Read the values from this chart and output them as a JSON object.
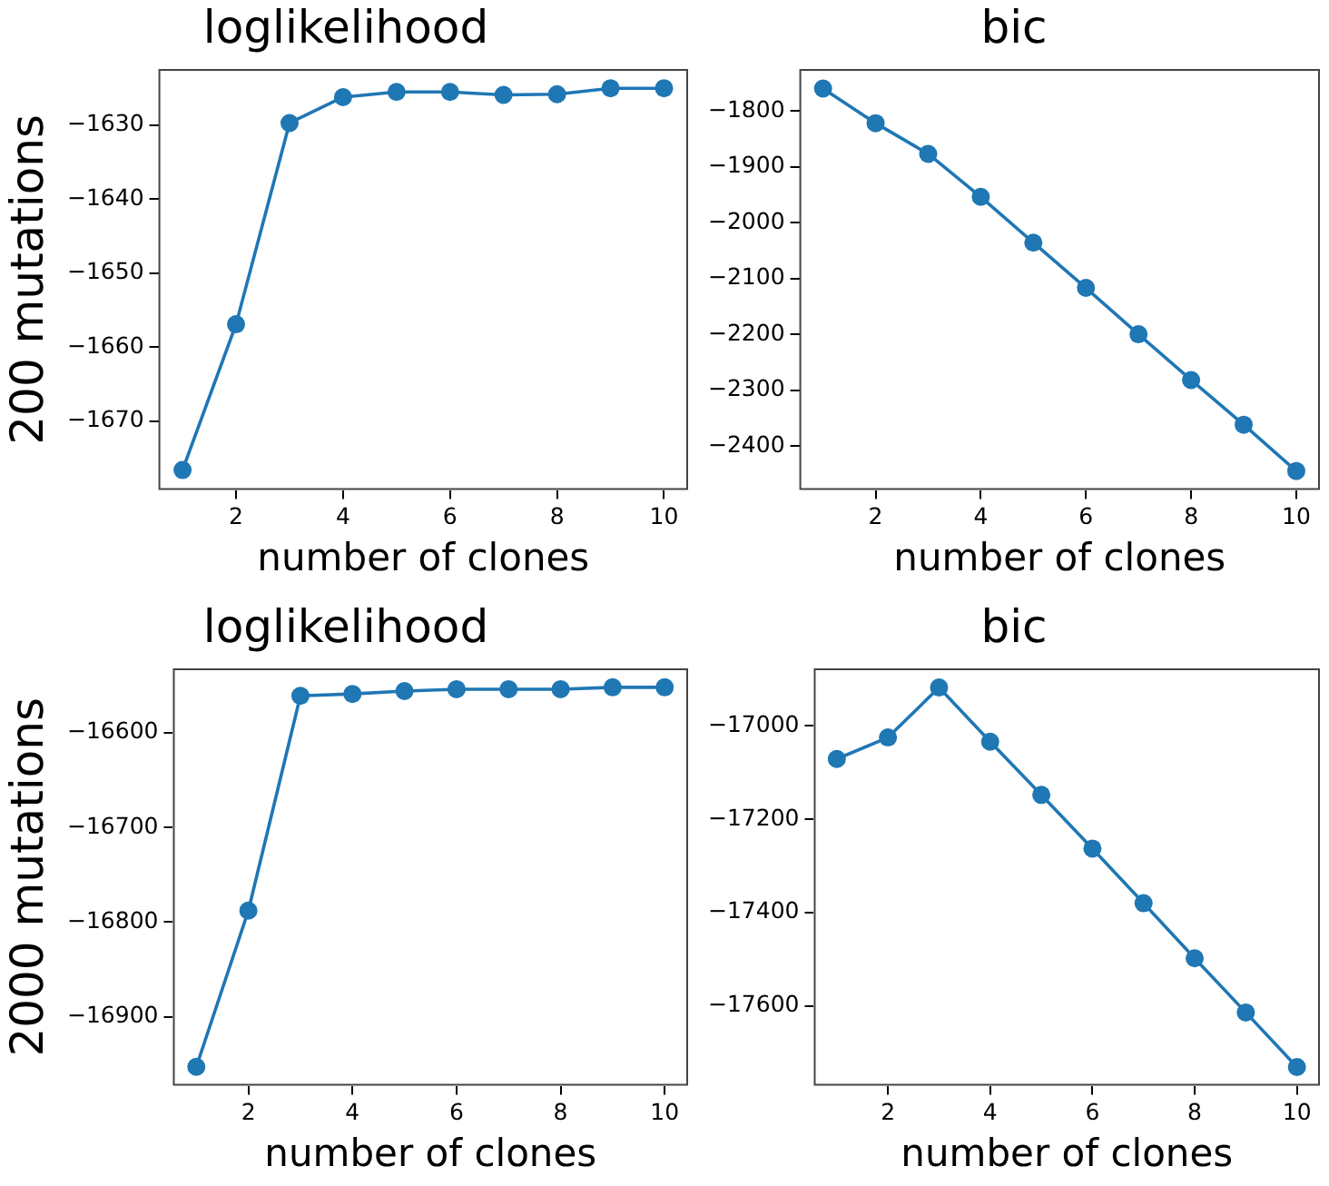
{
  "chart_data": [
    {
      "type": "line",
      "title": "loglikelihood",
      "ylabel": "200 mutations",
      "xlabel": "number of clones",
      "color": "#1f77b4",
      "marker": "circle",
      "grid": false,
      "x": [
        1,
        2,
        3,
        4,
        5,
        6,
        7,
        8,
        9,
        10
      ],
      "values": [
        -1676.6,
        -1656.9,
        -1629.7,
        -1626.2,
        -1625.5,
        -1625.5,
        -1625.9,
        -1625.8,
        -1625.0,
        -1625.0
      ],
      "xlim": [
        0.55,
        10.45
      ],
      "xticks": [
        2,
        4,
        6,
        8,
        10
      ],
      "ylim": [
        -1679.3,
        -1622.4
      ],
      "yticks": [
        -1670,
        -1660,
        -1650,
        -1640,
        -1630
      ]
    },
    {
      "type": "line",
      "title": "bic",
      "xlabel": "number of clones",
      "color": "#1f77b4",
      "marker": "circle",
      "grid": false,
      "x": [
        1,
        2,
        3,
        4,
        5,
        6,
        7,
        8,
        9,
        10
      ],
      "values": [
        -1760,
        -1822,
        -1877,
        -1954,
        -2036,
        -2117,
        -2200,
        -2282,
        -2362,
        -2445
      ],
      "xlim": [
        0.55,
        10.45
      ],
      "xticks": [
        2,
        4,
        6,
        8,
        10
      ],
      "ylim": [
        -2479,
        -1725
      ],
      "yticks": [
        -2400,
        -2300,
        -2200,
        -2100,
        -2000,
        -1900,
        -1800
      ]
    },
    {
      "type": "line",
      "title": "loglikelihood",
      "ylabel": "2000 mutations",
      "xlabel": "number of clones",
      "color": "#1f77b4",
      "marker": "circle",
      "grid": false,
      "x": [
        1,
        2,
        3,
        4,
        5,
        6,
        7,
        8,
        9,
        10
      ],
      "values": [
        -16953,
        -16788,
        -16561,
        -16559,
        -16556,
        -16554,
        -16554,
        -16554,
        -16552,
        -16552
      ],
      "xlim": [
        0.55,
        10.45
      ],
      "xticks": [
        2,
        4,
        6,
        8,
        10
      ],
      "ylim": [
        -16973,
        -16532
      ],
      "yticks": [
        -16900,
        -16800,
        -16700,
        -16600
      ]
    },
    {
      "type": "line",
      "title": "bic",
      "xlabel": "number of clones",
      "color": "#1f77b4",
      "marker": "circle",
      "grid": false,
      "x": [
        1,
        2,
        3,
        4,
        5,
        6,
        7,
        8,
        9,
        10
      ],
      "values": [
        -17071,
        -17025,
        -16918,
        -17034,
        -17148,
        -17263,
        -17380,
        -17498,
        -17614,
        -17731
      ],
      "xlim": [
        0.55,
        10.45
      ],
      "xticks": [
        2,
        4,
        6,
        8,
        10
      ],
      "ylim": [
        -17771,
        -16877
      ],
      "yticks": [
        -17600,
        -17400,
        -17200,
        -17000
      ]
    }
  ]
}
